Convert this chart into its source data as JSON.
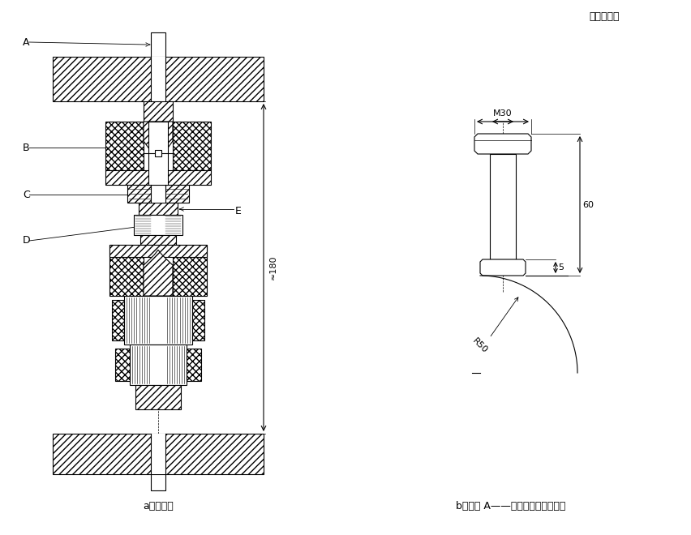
{
  "title_unit": "单位为毫米",
  "label_a": "a）组装件",
  "label_b": "b）部件 A——与试验机连接的尾栓",
  "dim_180": "≈180",
  "dim_M30": "M30",
  "dim_60": "60",
  "dim_5": "5",
  "dim_R50": "R50",
  "line_color": "#000000",
  "bg_color": "#ffffff",
  "font_size_label": 9,
  "font_size_dim": 8,
  "font_size_title": 9
}
